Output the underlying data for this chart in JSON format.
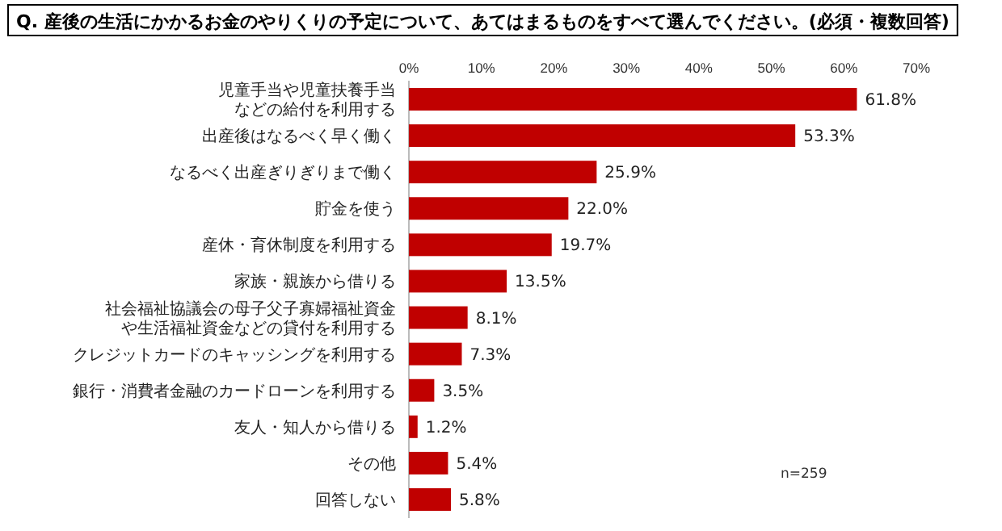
{
  "chart_data": {
    "type": "bar",
    "orientation": "horizontal",
    "title": "Q. 産後の生活にかかるお金のやりくりの予定について、あてはまるものをすべて選んでください。(必須・複数回答)",
    "categories": [
      "児童手当や児童扶養手当などの給付を利用する",
      "出産後はなるべく早く働く",
      "なるべく出産ぎりぎりまで働く",
      "貯金を使う",
      "産休・育休制度を利用する",
      "家族・親族から借りる",
      "社会福祉協議会の母子父子寡婦福祉資金や生活福祉資金などの貸付を利用する",
      "クレジットカードのキャッシングを利用する",
      "銀行・消費者金融のカードローンを利用する",
      "友人・知人から借りる",
      "その他",
      "回答しない"
    ],
    "values": [
      61.8,
      53.3,
      25.9,
      22.0,
      19.7,
      13.5,
      8.1,
      7.3,
      3.5,
      1.2,
      5.4,
      5.8
    ],
    "value_labels": [
      "61.8%",
      "53.3%",
      "25.9%",
      "22.0%",
      "19.7%",
      "13.5%",
      "8.1%",
      "7.3%",
      "3.5%",
      "1.2%",
      "5.4%",
      "5.8%"
    ],
    "color": "#c00000",
    "xlim": [
      0,
      70
    ],
    "xticks": [
      {
        "value": 0,
        "label": "0%"
      },
      {
        "value": 10,
        "label": "10%"
      },
      {
        "value": 20,
        "label": "20%"
      },
      {
        "value": 30,
        "label": "30%"
      },
      {
        "value": 40,
        "label": "40%"
      },
      {
        "value": 50,
        "label": "50%"
      },
      {
        "value": 60,
        "label": "60%"
      },
      {
        "value": 70,
        "label": "70%"
      }
    ],
    "annotations": [
      "n=259"
    ],
    "grid": false
  }
}
